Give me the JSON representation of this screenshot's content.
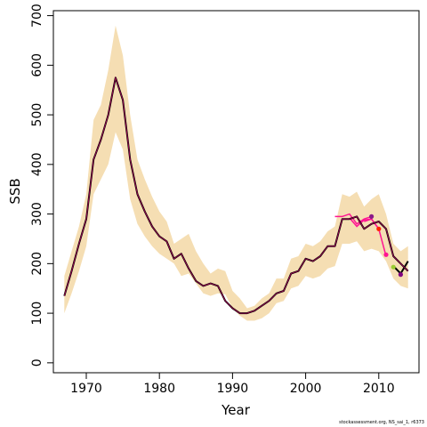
{
  "chart_data": {
    "type": "line",
    "xlabel": "Year",
    "ylabel": "SSB",
    "xlim": [
      1965.5,
      2015.5
    ],
    "ylim": [
      -20,
      710
    ],
    "xticks": [
      1970,
      1980,
      1990,
      2000,
      2010
    ],
    "yticks": [
      0,
      100,
      200,
      300,
      400,
      500,
      600,
      700
    ],
    "grid": false,
    "legend": "none",
    "band_color": "#f5deb3",
    "line_color": "#000000",
    "retro_color": "#ff1493",
    "band": {
      "x": [
        1967,
        1968,
        1969,
        1970,
        1971,
        1972,
        1973,
        1974,
        1975,
        1976,
        1977,
        1978,
        1979,
        1980,
        1981,
        1982,
        1983,
        1984,
        1985,
        1986,
        1987,
        1988,
        1989,
        1990,
        1991,
        1992,
        1993,
        1994,
        1995,
        1996,
        1997,
        1998,
        1999,
        2000,
        2001,
        2002,
        2003,
        2004,
        2005,
        2006,
        2007,
        2008,
        2009,
        2010,
        2011,
        2012,
        2013,
        2014
      ],
      "lower": [
        100,
        140,
        185,
        235,
        340,
        370,
        400,
        465,
        430,
        330,
        280,
        255,
        235,
        220,
        210,
        200,
        175,
        180,
        160,
        140,
        135,
        140,
        138,
        110,
        95,
        85,
        85,
        90,
        100,
        120,
        125,
        150,
        155,
        175,
        170,
        175,
        190,
        195,
        240,
        240,
        245,
        225,
        230,
        225,
        205,
        170,
        155,
        150
      ],
      "upper": [
        175,
        225,
        275,
        340,
        490,
        520,
        590,
        680,
        620,
        500,
        410,
        370,
        335,
        305,
        285,
        240,
        250,
        260,
        225,
        200,
        180,
        190,
        185,
        145,
        130,
        110,
        115,
        130,
        140,
        170,
        170,
        210,
        215,
        240,
        235,
        245,
        265,
        275,
        340,
        335,
        345,
        315,
        330,
        340,
        300,
        240,
        225,
        235
      ]
    },
    "series": [
      {
        "x": [
          1967,
          1968,
          1969,
          1970,
          1971,
          1972,
          1973,
          1974,
          1975,
          1976,
          1977,
          1978,
          1979,
          1980,
          1981,
          1982,
          1983,
          1984,
          1985,
          1986,
          1987,
          1988,
          1989,
          1990,
          1991,
          1992,
          1993,
          1994,
          1995,
          1996,
          1997,
          1998,
          1999,
          2000,
          2001,
          2002,
          2003,
          2004,
          2005,
          2006,
          2007,
          2008,
          2009,
          2010,
          2011,
          2012,
          2013,
          2014
        ],
        "values": [
          135,
          185,
          240,
          290,
          410,
          450,
          500,
          575,
          530,
          410,
          340,
          305,
          275,
          255,
          245,
          210,
          220,
          190,
          165,
          155,
          160,
          155,
          125,
          110,
          100,
          100,
          105,
          115,
          125,
          140,
          145,
          180,
          185,
          210,
          205,
          215,
          235,
          235,
          290,
          290,
          295,
          270,
          280,
          285,
          270,
          215,
          200,
          185
        ]
      },
      {
        "x": [
          2012,
          2013,
          2014
        ],
        "values": [
          195,
          180,
          205
        ]
      }
    ],
    "retro_lines": [
      {
        "x": [
          2004,
          2005,
          2006,
          2007,
          2008,
          2009
        ],
        "values": [
          295,
          295,
          300,
          280,
          290,
          295
        ]
      },
      {
        "x": [
          2006,
          2007,
          2008,
          2009,
          2010
        ],
        "values": [
          292,
          275,
          288,
          290,
          270
        ]
      },
      {
        "x": [
          2008,
          2009,
          2010,
          2011
        ],
        "values": [
          285,
          290,
          270,
          215
        ]
      }
    ],
    "points": [
      {
        "x": 2009,
        "y": 295,
        "color": "#8b1a89"
      },
      {
        "x": 2010,
        "y": 270,
        "color": "#ff2400"
      },
      {
        "x": 2011,
        "y": 218,
        "color": "#ff1493"
      },
      {
        "x": 2012,
        "y": 193,
        "color": "#9acd32"
      },
      {
        "x": 2013,
        "y": 178,
        "color": "#800080"
      }
    ]
  },
  "footer": "stockassessment.org, NS_sai_1, r6373"
}
